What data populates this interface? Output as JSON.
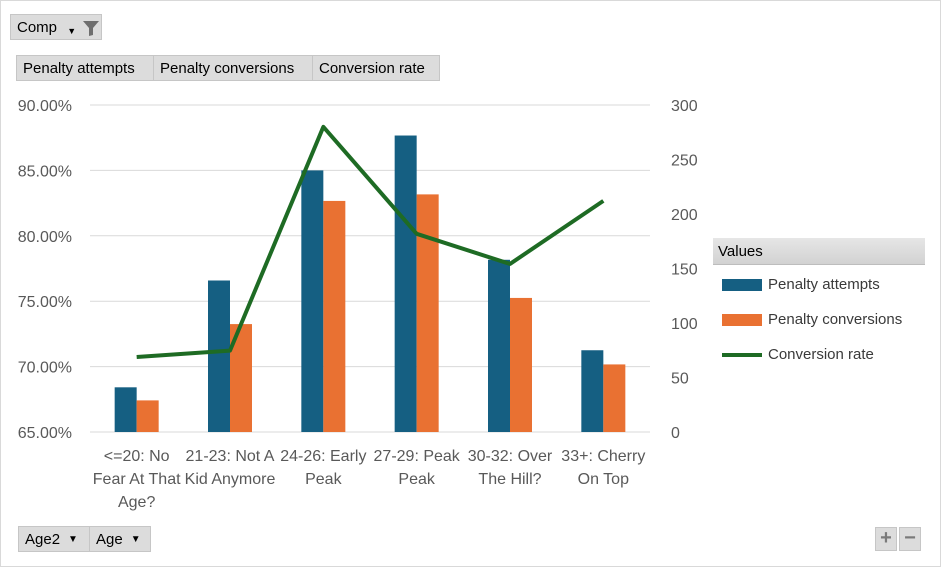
{
  "filter_field": {
    "label": "Comp",
    "icon": "filter-icon"
  },
  "value_buttons": [
    "Penalty attempts",
    "Penalty conversions",
    "Conversion rate"
  ],
  "row_fields": [
    {
      "label": "Age2",
      "icon": "dropdown-arrow-icon"
    },
    {
      "label": "Age",
      "icon": "dropdown-arrow-icon"
    }
  ],
  "legend": {
    "title": "Values"
  },
  "zoom": {
    "plus": "+",
    "minus": "−"
  },
  "colors": {
    "attempts": "#155f82",
    "conversions": "#e97132",
    "rate": "#1e6b24",
    "grid": "#d9d9d9",
    "text": "#595959"
  },
  "chart_data": {
    "type": "bar",
    "categories": [
      [
        "<=20: No",
        "Fear At That",
        "Age?"
      ],
      [
        "21-23: Not A",
        "Kid Anymore"
      ],
      [
        "24-26: Early",
        "Peak"
      ],
      [
        "27-29: Peak",
        "Peak"
      ],
      [
        "30-32: Over",
        "The Hill?"
      ],
      [
        "33+: Cherry",
        "On Top"
      ]
    ],
    "series": [
      {
        "name": "Penalty attempts",
        "type": "bar",
        "axis": "secondary",
        "values": [
          41,
          139,
          240,
          272,
          158,
          75
        ]
      },
      {
        "name": "Penalty conversions",
        "type": "bar",
        "axis": "secondary",
        "values": [
          29,
          99,
          212,
          218,
          123,
          62
        ]
      },
      {
        "name": "Conversion rate",
        "type": "line",
        "axis": "primary",
        "values": [
          0.7073,
          0.7122,
          0.8833,
          0.8015,
          0.7785,
          0.8267
        ]
      }
    ],
    "primary_axis": {
      "min": 0.65,
      "max": 0.9,
      "ticks": [
        "90.00%",
        "85.00%",
        "80.00%",
        "75.00%",
        "70.00%",
        "65.00%"
      ]
    },
    "secondary_axis": {
      "min": 0,
      "max": 300,
      "ticks": [
        "300",
        "250",
        "200",
        "150",
        "100",
        "50",
        "0"
      ]
    },
    "grid": true,
    "legend_position": "right"
  }
}
